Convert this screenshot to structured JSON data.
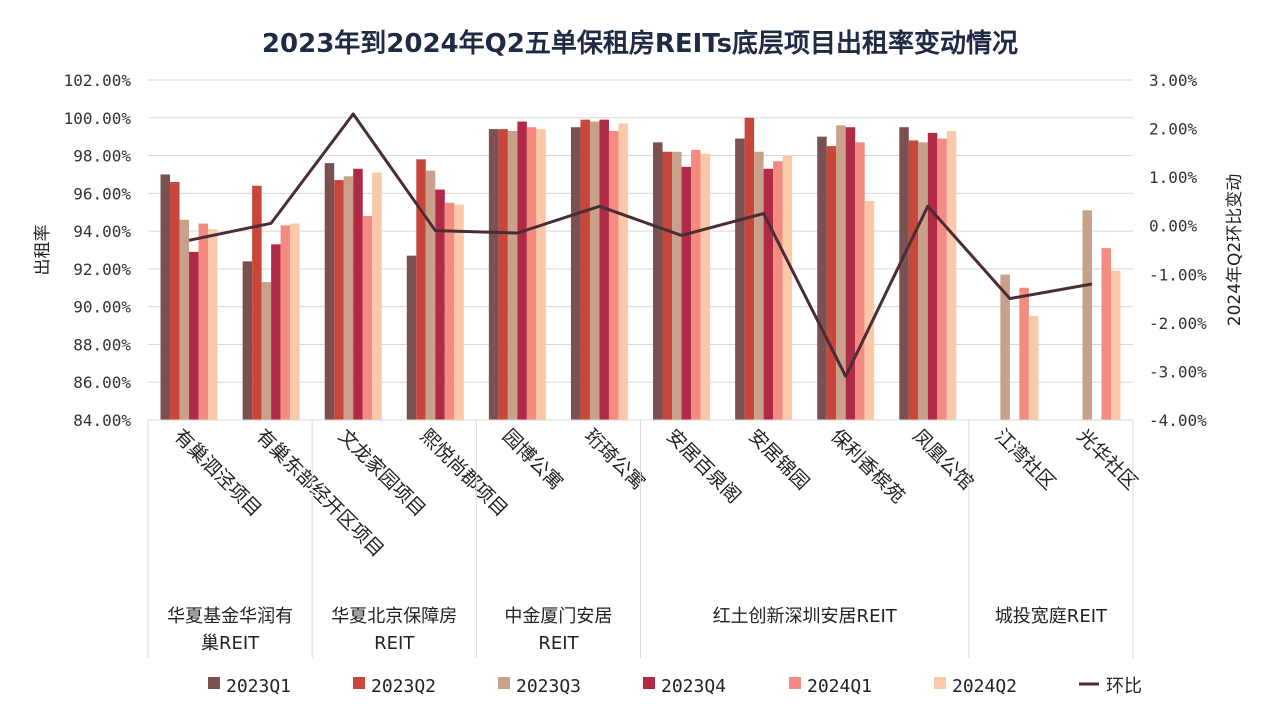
{
  "chart_data": {
    "type": "bar",
    "title": "2023年到2024年Q2五单保租房REITs底层项目出租率变动情况",
    "ylabel": "出租率",
    "y2label": "2024年Q2环比变动",
    "ylim": [
      84,
      102
    ],
    "y2lim": [
      -4,
      3
    ],
    "y_ticks": [
      "84.00%",
      "86.00%",
      "88.00%",
      "90.00%",
      "92.00%",
      "94.00%",
      "96.00%",
      "98.00%",
      "100.00%",
      "102.00%"
    ],
    "y2_ticks": [
      "-4.00%",
      "-3.00%",
      "-2.00%",
      "-1.00%",
      "0.00%",
      "1.00%",
      "2.00%",
      "3.00%"
    ],
    "grid": true,
    "legend_position": "bottom",
    "categories": [
      "有巢泗泾项目",
      "有巢东部经开区项目",
      "文龙家园项目",
      "熙悦尚郡项目",
      "园博公寓",
      "珩琦公寓",
      "安居百泉阁",
      "安居锦园",
      "保利香槟苑",
      "凤凰公馆",
      "江湾社区",
      "光华社区"
    ],
    "groups": [
      {
        "label": "华夏基金华润有巢REIT",
        "lines": [
          "华夏基金华润有",
          "巢REIT"
        ],
        "start": 0,
        "end": 1
      },
      {
        "label": "华夏北京保障房REIT",
        "lines": [
          "华夏北京保障房",
          "REIT"
        ],
        "start": 2,
        "end": 3
      },
      {
        "label": "中金厦门安居REIT",
        "lines": [
          "中金厦门安居",
          "REIT"
        ],
        "start": 4,
        "end": 5
      },
      {
        "label": "红土创新深圳安居REIT",
        "lines": [
          "红土创新深圳安居REIT"
        ],
        "start": 6,
        "end": 9
      },
      {
        "label": "城投宽庭REIT",
        "lines": [
          "城投宽庭REIT"
        ],
        "start": 10,
        "end": 11
      }
    ],
    "series": [
      {
        "name": "2023Q1",
        "color": "#7a5050",
        "values": [
          97.0,
          92.4,
          97.6,
          92.7,
          99.4,
          99.5,
          98.7,
          98.9,
          99.0,
          99.5,
          null,
          null
        ]
      },
      {
        "name": "2023Q2",
        "color": "#c8473a",
        "values": [
          96.6,
          96.4,
          96.7,
          97.8,
          99.4,
          99.9,
          98.2,
          100.0,
          98.5,
          98.8,
          null,
          null
        ]
      },
      {
        "name": "2023Q3",
        "color": "#c9a08a",
        "values": [
          94.6,
          91.3,
          96.9,
          97.2,
          99.3,
          99.8,
          98.2,
          98.2,
          99.6,
          98.7,
          91.7,
          95.1
        ]
      },
      {
        "name": "2023Q4",
        "color": "#b02a45",
        "values": [
          92.9,
          93.3,
          97.3,
          96.2,
          99.8,
          99.9,
          97.4,
          97.3,
          99.5,
          99.2,
          null,
          null
        ]
      },
      {
        "name": "2024Q1",
        "color": "#f48a80",
        "values": [
          94.4,
          94.3,
          94.8,
          95.5,
          99.5,
          99.3,
          98.3,
          97.7,
          98.7,
          98.9,
          91.0,
          93.1
        ]
      },
      {
        "name": "2024Q2",
        "color": "#fbc8a8",
        "values": [
          94.1,
          94.4,
          97.1,
          95.4,
          99.4,
          99.7,
          98.1,
          98.0,
          95.6,
          99.3,
          89.5,
          91.9
        ]
      }
    ],
    "line_series": {
      "name": "环比",
      "color": "#4a2c35",
      "axis": "right",
      "values": [
        -0.3,
        0.05,
        2.3,
        -0.1,
        -0.15,
        0.4,
        -0.2,
        0.25,
        -3.1,
        0.4,
        -1.5,
        -1.2
      ]
    }
  }
}
